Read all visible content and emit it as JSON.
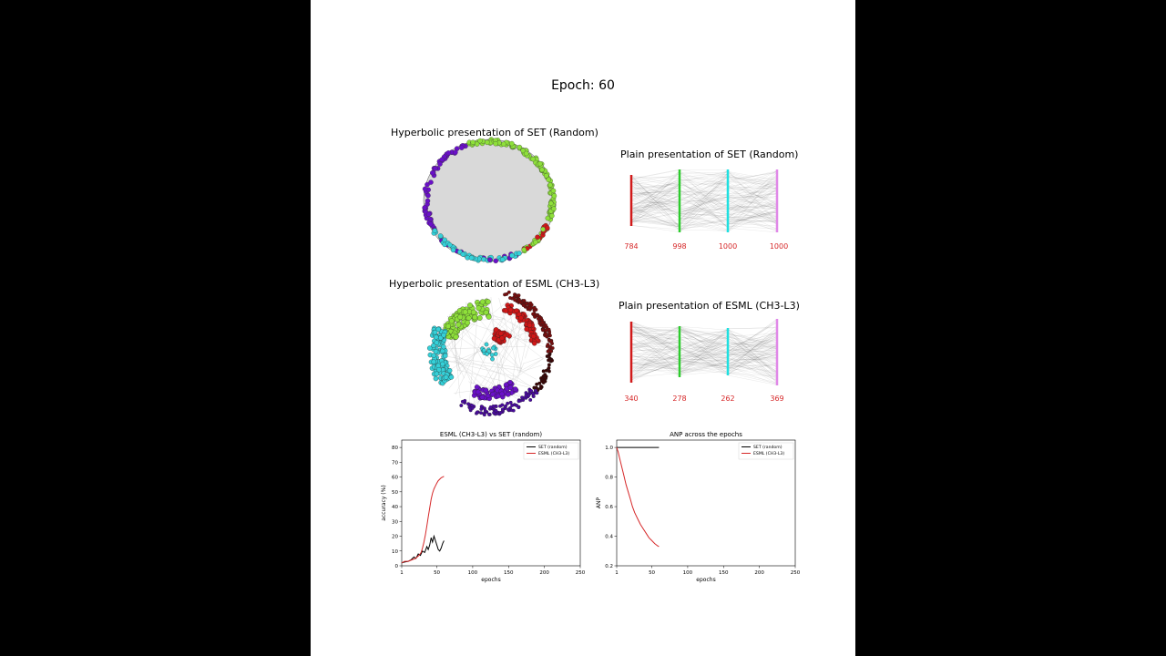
{
  "figure": {
    "title": "Epoch: 60",
    "hyperbolic_set_title": "Hyperbolic presentation of SET (Random)",
    "plain_set_title": "Plain presentation of SET (Random)",
    "hyperbolic_esml_title": "Hyperbolic presentation of ESML (CH3-L3)",
    "plain_esml_title": "Plain presentation of ESML (CH3-L3)"
  },
  "colors": {
    "background": "#000000",
    "canvas": "#ffffff",
    "layer_colors": [
      "#d11a1a",
      "#2ecc2e",
      "#1ee0e0",
      "#e088e8"
    ],
    "node_green": "#8ee03a",
    "node_cyan": "#35d0d8",
    "node_purple": "#6a10c8",
    "node_red": "#d01818",
    "disk_fill": "#d9d9d9",
    "set_line": "#000000",
    "esml_line": "#d62728",
    "layer_label": "#d62728"
  },
  "plain_set": {
    "layer_sizes": [
      "784",
      "998",
      "1000",
      "1000"
    ]
  },
  "plain_esml": {
    "layer_sizes": [
      "340",
      "278",
      "262",
      "369"
    ]
  },
  "chart_data": [
    {
      "type": "line",
      "title": "ESML (CH3-L3) vs SET (random)",
      "xlabel": "epochs",
      "ylabel": "accuracy (%)",
      "xlim": [
        1,
        250
      ],
      "ylim": [
        0,
        85
      ],
      "xticks": [
        1,
        50,
        100,
        150,
        200,
        250
      ],
      "yticks": [
        0,
        10,
        20,
        30,
        40,
        50,
        60,
        70,
        80
      ],
      "legend": "top-right",
      "series": [
        {
          "name": "SET (random)",
          "color": "#000000",
          "x": [
            1,
            5,
            10,
            14,
            18,
            21,
            24,
            27,
            30,
            33,
            36,
            38,
            40,
            42,
            44,
            46,
            48,
            50,
            52,
            54,
            56,
            58,
            60
          ],
          "y": [
            2,
            2.5,
            3,
            4,
            6,
            5,
            8,
            7,
            10,
            9,
            13,
            11,
            14,
            19,
            16,
            20,
            17,
            14,
            11,
            10,
            12,
            15,
            17
          ]
        },
        {
          "name": "ESML (CH3-L3)",
          "color": "#d62728",
          "x": [
            1,
            5,
            10,
            15,
            20,
            25,
            28,
            30,
            32,
            34,
            36,
            38,
            40,
            42,
            44,
            46,
            48,
            50,
            52,
            54,
            56,
            58,
            60
          ],
          "y": [
            2,
            3,
            3,
            4,
            5,
            7,
            9,
            12,
            16,
            21,
            27,
            33,
            39,
            45,
            49,
            52,
            54,
            56,
            57.5,
            58.5,
            59.5,
            60,
            60.5
          ]
        }
      ]
    },
    {
      "type": "line",
      "title": "ANP across the epochs",
      "xlabel": "epochs",
      "ylabel": "ANP",
      "xlim": [
        1,
        250
      ],
      "ylim": [
        0.2,
        1.05
      ],
      "xticks": [
        1,
        50,
        100,
        150,
        200,
        250
      ],
      "yticks": [
        0.2,
        0.4,
        0.6,
        0.8,
        1.0
      ],
      "legend": "top-right",
      "series": [
        {
          "name": "SET (random)",
          "color": "#000000",
          "x": [
            1,
            60
          ],
          "y": [
            1.0,
            1.0
          ]
        },
        {
          "name": "ESML (CH3-L3)",
          "color": "#d62728",
          "x": [
            1,
            3,
            5,
            8,
            11,
            14,
            17,
            20,
            23,
            26,
            30,
            34,
            38,
            42,
            46,
            50,
            54,
            58,
            60
          ],
          "y": [
            1.0,
            0.97,
            0.93,
            0.87,
            0.81,
            0.75,
            0.7,
            0.65,
            0.6,
            0.56,
            0.52,
            0.48,
            0.45,
            0.42,
            0.39,
            0.37,
            0.35,
            0.335,
            0.33
          ]
        }
      ]
    }
  ]
}
